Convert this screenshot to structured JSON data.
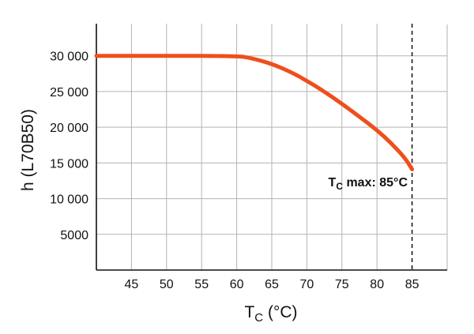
{
  "chart_data": {
    "type": "line",
    "xlabel": {
      "main": "T",
      "sub": "C",
      "rest": " (°C)"
    },
    "ylabel": "h (L70B50)",
    "xlim": [
      40,
      90
    ],
    "ylim": [
      0,
      34500
    ],
    "xticks": [
      45,
      50,
      55,
      60,
      65,
      70,
      75,
      80,
      85
    ],
    "yticks": [
      5000,
      10000,
      15000,
      20000,
      25000,
      30000
    ],
    "ytick_labels": [
      "5000",
      "10 000",
      "15 000",
      "20 000",
      "25 000",
      "30 000"
    ],
    "grid": true,
    "series": [
      {
        "color": "#ee4f1c",
        "points": [
          [
            40,
            30000
          ],
          [
            60,
            30000
          ],
          [
            62,
            29700
          ],
          [
            65,
            28900
          ],
          [
            68,
            27600
          ],
          [
            70,
            26500
          ],
          [
            72,
            25300
          ],
          [
            75,
            23300
          ],
          [
            78,
            21100
          ],
          [
            80,
            19600
          ],
          [
            82,
            17800
          ],
          [
            84,
            15700
          ],
          [
            85,
            14100
          ]
        ]
      }
    ],
    "reference_line": {
      "x": 85,
      "style": "dashed"
    },
    "annotation": {
      "main": "T",
      "sub": "C",
      "rest": " max: 85°C"
    }
  }
}
